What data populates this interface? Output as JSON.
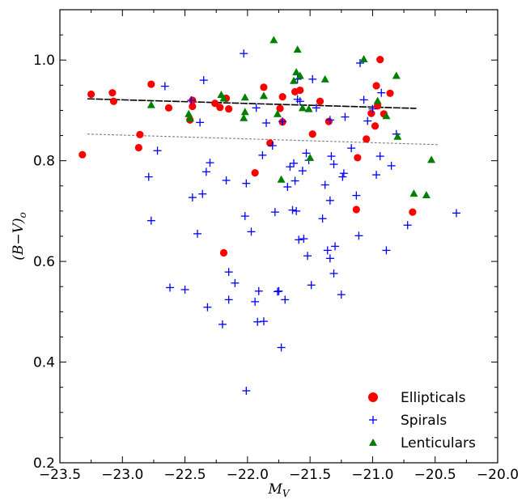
{
  "chart_data": {
    "type": "scatter",
    "xlabel": "M_V",
    "ylabel": "(B−V)_o",
    "xlim": [
      -23.5,
      -20.0
    ],
    "ylim": [
      0.2,
      1.1
    ],
    "x_ticks": [
      -23.5,
      -23.0,
      -22.5,
      -22.0,
      -21.5,
      -21.0,
      -20.5,
      -20.0
    ],
    "x_tick_labels": [
      "−23.5",
      "−23.0",
      "−22.5",
      "−22.0",
      "−21.5",
      "−21.0",
      "−20.5",
      "−20.0"
    ],
    "y_ticks": [
      0.2,
      0.4,
      0.6,
      0.8,
      1.0
    ],
    "y_tick_labels": [
      "0.2",
      "0.4",
      "0.6",
      "0.8",
      "1.0"
    ],
    "grid": false,
    "legend_position": "bottom-right",
    "series": [
      {
        "name": "Ellipticals",
        "marker": "circle",
        "color": "#ff0000",
        "points": [
          [
            -23.32,
            0.812
          ],
          [
            -23.25,
            0.932
          ],
          [
            -23.08,
            0.935
          ],
          [
            -23.07,
            0.918
          ],
          [
            -22.87,
            0.826
          ],
          [
            -22.86,
            0.852
          ],
          [
            -22.77,
            0.952
          ],
          [
            -22.63,
            0.905
          ],
          [
            -22.46,
            0.881
          ],
          [
            -22.44,
            0.92
          ],
          [
            -22.44,
            0.908
          ],
          [
            -22.26,
            0.914
          ],
          [
            -22.22,
            0.906
          ],
          [
            -22.19,
            0.617
          ],
          [
            -22.17,
            0.924
          ],
          [
            -22.15,
            0.903
          ],
          [
            -21.94,
            0.776
          ],
          [
            -21.87,
            0.946
          ],
          [
            -21.82,
            0.835
          ],
          [
            -21.74,
            0.904
          ],
          [
            -21.72,
            0.927
          ],
          [
            -21.72,
            0.877
          ],
          [
            -21.62,
            0.937
          ],
          [
            -21.58,
            0.94
          ],
          [
            -21.48,
            0.853
          ],
          [
            -21.42,
            0.918
          ],
          [
            -21.35,
            0.878
          ],
          [
            -21.13,
            0.703
          ],
          [
            -21.12,
            0.806
          ],
          [
            -21.05,
            0.843
          ],
          [
            -21.01,
            0.894
          ],
          [
            -20.98,
            0.869
          ],
          [
            -20.97,
            0.949
          ],
          [
            -20.96,
            0.909
          ],
          [
            -20.94,
            1.001
          ],
          [
            -20.91,
            0.893
          ],
          [
            -20.86,
            0.934
          ],
          [
            -20.68,
            0.698
          ]
        ]
      },
      {
        "name": "Spirals",
        "marker": "plus",
        "color": "#0000ff",
        "points": [
          [
            -22.79,
            0.768
          ],
          [
            -22.77,
            0.681
          ],
          [
            -22.72,
            0.82
          ],
          [
            -22.66,
            0.948
          ],
          [
            -22.62,
            0.548
          ],
          [
            -22.5,
            0.544
          ],
          [
            -22.45,
            0.92
          ],
          [
            -22.44,
            0.727
          ],
          [
            -22.4,
            0.655
          ],
          [
            -22.38,
            0.876
          ],
          [
            -22.36,
            0.734
          ],
          [
            -22.35,
            0.96
          ],
          [
            -22.33,
            0.778
          ],
          [
            -22.32,
            0.509
          ],
          [
            -22.3,
            0.796
          ],
          [
            -22.2,
            0.475
          ],
          [
            -22.17,
            0.761
          ],
          [
            -22.15,
            0.524
          ],
          [
            -22.15,
            0.579
          ],
          [
            -22.1,
            0.557
          ],
          [
            -22.03,
            1.013
          ],
          [
            -22.02,
            0.69
          ],
          [
            -22.01,
            0.755
          ],
          [
            -22.01,
            0.343
          ],
          [
            -21.97,
            0.659
          ],
          [
            -21.94,
            0.52
          ],
          [
            -21.93,
            0.905
          ],
          [
            -21.92,
            0.48
          ],
          [
            -21.91,
            0.541
          ],
          [
            -21.88,
            0.811
          ],
          [
            -21.87,
            0.481
          ],
          [
            -21.85,
            0.875
          ],
          [
            -21.8,
            0.83
          ],
          [
            -21.78,
            0.698
          ],
          [
            -21.76,
            0.54
          ],
          [
            -21.75,
            0.541
          ],
          [
            -21.73,
            0.429
          ],
          [
            -21.72,
            0.878
          ],
          [
            -21.7,
            0.524
          ],
          [
            -21.68,
            0.748
          ],
          [
            -21.66,
            0.788
          ],
          [
            -21.64,
            0.702
          ],
          [
            -21.63,
            0.795
          ],
          [
            -21.62,
            0.76
          ],
          [
            -21.61,
            0.7
          ],
          [
            -21.6,
            0.922
          ],
          [
            -21.6,
            0.962
          ],
          [
            -21.59,
            0.643
          ],
          [
            -21.58,
            0.918
          ],
          [
            -21.56,
            0.78
          ],
          [
            -21.55,
            0.645
          ],
          [
            -21.53,
            0.815
          ],
          [
            -21.52,
            0.611
          ],
          [
            -21.51,
            0.801
          ],
          [
            -21.49,
            0.553
          ],
          [
            -21.48,
            0.962
          ],
          [
            -21.45,
            0.905
          ],
          [
            -21.4,
            0.685
          ],
          [
            -21.38,
            0.752
          ],
          [
            -21.36,
            0.622
          ],
          [
            -21.34,
            0.606
          ],
          [
            -21.34,
            0.881
          ],
          [
            -21.34,
            0.721
          ],
          [
            -21.33,
            0.809
          ],
          [
            -21.31,
            0.793
          ],
          [
            -21.31,
            0.576
          ],
          [
            -21.3,
            0.63
          ],
          [
            -21.25,
            0.534
          ],
          [
            -21.24,
            0.768
          ],
          [
            -21.23,
            0.775
          ],
          [
            -21.22,
            0.887
          ],
          [
            -21.17,
            0.825
          ],
          [
            -21.13,
            0.731
          ],
          [
            -21.11,
            0.651
          ],
          [
            -21.1,
            0.994
          ],
          [
            -21.07,
            0.921
          ],
          [
            -21.04,
            0.879
          ],
          [
            -21.0,
            0.903
          ],
          [
            -20.97,
            0.772
          ],
          [
            -20.94,
            0.809
          ],
          [
            -20.93,
            0.935
          ],
          [
            -20.89,
            0.622
          ],
          [
            -20.85,
            0.79
          ],
          [
            -20.81,
            0.853
          ],
          [
            -20.72,
            0.672
          ],
          [
            -20.33,
            0.696
          ]
        ]
      },
      {
        "name": "Lenticulars",
        "marker": "triangle",
        "color": "#008000",
        "points": [
          [
            -22.77,
            0.911
          ],
          [
            -22.47,
            0.893
          ],
          [
            -22.46,
            0.884
          ],
          [
            -22.21,
            0.931
          ],
          [
            -22.19,
            0.924
          ],
          [
            -22.03,
            0.885
          ],
          [
            -22.02,
            0.926
          ],
          [
            -22.02,
            0.897
          ],
          [
            -21.87,
            0.929
          ],
          [
            -21.79,
            1.04
          ],
          [
            -21.76,
            0.893
          ],
          [
            -21.73,
            0.763
          ],
          [
            -21.63,
            0.959
          ],
          [
            -21.61,
            0.976
          ],
          [
            -21.6,
            1.021
          ],
          [
            -21.58,
            0.969
          ],
          [
            -21.56,
            0.905
          ],
          [
            -21.51,
            0.903
          ],
          [
            -21.5,
            0.806
          ],
          [
            -21.38,
            0.962
          ],
          [
            -21.07,
            1.002
          ],
          [
            -20.96,
            0.919
          ],
          [
            -20.89,
            0.889
          ],
          [
            -20.81,
            0.969
          ],
          [
            -20.8,
            0.848
          ],
          [
            -20.67,
            0.735
          ],
          [
            -20.57,
            0.732
          ],
          [
            -20.53,
            0.802
          ]
        ]
      }
    ],
    "fit_lines": [
      {
        "style": "solid",
        "color": "#000000",
        "x": [
          -23.28,
          -20.65
        ],
        "y": [
          0.923,
          0.904
        ]
      },
      {
        "style": "dashed",
        "color": "#808080",
        "x": [
          -23.28,
          -20.48
        ],
        "y": [
          0.853,
          0.832
        ]
      }
    ]
  }
}
